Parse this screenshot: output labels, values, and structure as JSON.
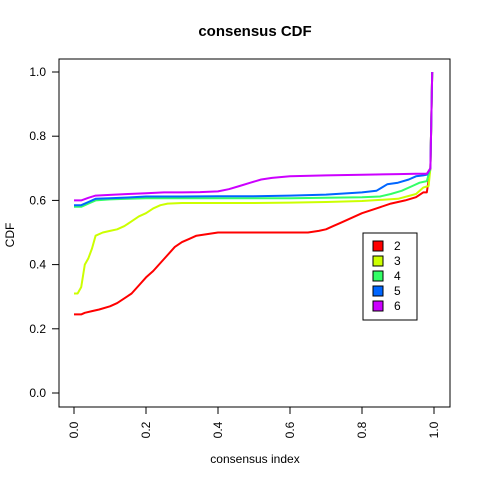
{
  "chart_data": {
    "type": "line",
    "title": "consensus CDF",
    "xlabel": "consensus index",
    "ylabel": "CDF",
    "xlim": [
      0,
      1
    ],
    "ylim": [
      0,
      1
    ],
    "x_ticks": [
      "0.0",
      "0.2",
      "0.4",
      "0.6",
      "0.8",
      "1.0"
    ],
    "y_ticks": [
      "0.0",
      "0.2",
      "0.4",
      "0.6",
      "0.8",
      "1.0"
    ],
    "grid": false,
    "legend_position": "right",
    "series": [
      {
        "name": "2",
        "color": "#ff0000",
        "points": [
          [
            0.0,
            0.245
          ],
          [
            0.02,
            0.245
          ],
          [
            0.03,
            0.25
          ],
          [
            0.05,
            0.255
          ],
          [
            0.07,
            0.26
          ],
          [
            0.1,
            0.27
          ],
          [
            0.12,
            0.28
          ],
          [
            0.14,
            0.295
          ],
          [
            0.16,
            0.31
          ],
          [
            0.18,
            0.335
          ],
          [
            0.2,
            0.36
          ],
          [
            0.22,
            0.38
          ],
          [
            0.24,
            0.405
          ],
          [
            0.26,
            0.43
          ],
          [
            0.28,
            0.455
          ],
          [
            0.3,
            0.47
          ],
          [
            0.32,
            0.48
          ],
          [
            0.34,
            0.49
          ],
          [
            0.37,
            0.495
          ],
          [
            0.4,
            0.5
          ],
          [
            0.45,
            0.5
          ],
          [
            0.5,
            0.5
          ],
          [
            0.55,
            0.5
          ],
          [
            0.6,
            0.5
          ],
          [
            0.65,
            0.5
          ],
          [
            0.68,
            0.505
          ],
          [
            0.7,
            0.51
          ],
          [
            0.72,
            0.52
          ],
          [
            0.74,
            0.53
          ],
          [
            0.76,
            0.54
          ],
          [
            0.8,
            0.56
          ],
          [
            0.84,
            0.575
          ],
          [
            0.88,
            0.59
          ],
          [
            0.92,
            0.6
          ],
          [
            0.95,
            0.61
          ],
          [
            0.97,
            0.625
          ],
          [
            0.98,
            0.625
          ],
          [
            0.99,
            0.7
          ],
          [
            0.995,
            1.0
          ]
        ]
      },
      {
        "name": "3",
        "color": "#ccff00",
        "points": [
          [
            0.0,
            0.31
          ],
          [
            0.01,
            0.31
          ],
          [
            0.02,
            0.33
          ],
          [
            0.03,
            0.4
          ],
          [
            0.04,
            0.42
          ],
          [
            0.05,
            0.45
          ],
          [
            0.06,
            0.49
          ],
          [
            0.08,
            0.5
          ],
          [
            0.1,
            0.505
          ],
          [
            0.12,
            0.51
          ],
          [
            0.14,
            0.52
          ],
          [
            0.16,
            0.535
          ],
          [
            0.18,
            0.55
          ],
          [
            0.2,
            0.56
          ],
          [
            0.22,
            0.575
          ],
          [
            0.24,
            0.585
          ],
          [
            0.26,
            0.59
          ],
          [
            0.3,
            0.592
          ],
          [
            0.4,
            0.592
          ],
          [
            0.5,
            0.592
          ],
          [
            0.6,
            0.593
          ],
          [
            0.7,
            0.595
          ],
          [
            0.8,
            0.598
          ],
          [
            0.9,
            0.605
          ],
          [
            0.95,
            0.62
          ],
          [
            0.97,
            0.64
          ],
          [
            0.985,
            0.645
          ],
          [
            0.99,
            0.7
          ],
          [
            0.995,
            1.0
          ]
        ]
      },
      {
        "name": "4",
        "color": "#33ff66",
        "points": [
          [
            0.0,
            0.58
          ],
          [
            0.02,
            0.58
          ],
          [
            0.04,
            0.59
          ],
          [
            0.06,
            0.6
          ],
          [
            0.1,
            0.603
          ],
          [
            0.15,
            0.605
          ],
          [
            0.2,
            0.607
          ],
          [
            0.3,
            0.607
          ],
          [
            0.4,
            0.607
          ],
          [
            0.5,
            0.607
          ],
          [
            0.6,
            0.607
          ],
          [
            0.7,
            0.608
          ],
          [
            0.8,
            0.61
          ],
          [
            0.85,
            0.612
          ],
          [
            0.88,
            0.62
          ],
          [
            0.91,
            0.63
          ],
          [
            0.94,
            0.645
          ],
          [
            0.96,
            0.655
          ],
          [
            0.98,
            0.66
          ],
          [
            0.99,
            0.7
          ],
          [
            0.995,
            1.0
          ]
        ]
      },
      {
        "name": "5",
        "color": "#0066ff",
        "points": [
          [
            0.0,
            0.585
          ],
          [
            0.02,
            0.585
          ],
          [
            0.04,
            0.595
          ],
          [
            0.06,
            0.605
          ],
          [
            0.1,
            0.607
          ],
          [
            0.15,
            0.609
          ],
          [
            0.2,
            0.612
          ],
          [
            0.3,
            0.612
          ],
          [
            0.4,
            0.613
          ],
          [
            0.5,
            0.613
          ],
          [
            0.6,
            0.615
          ],
          [
            0.7,
            0.618
          ],
          [
            0.8,
            0.625
          ],
          [
            0.84,
            0.63
          ],
          [
            0.87,
            0.65
          ],
          [
            0.9,
            0.655
          ],
          [
            0.93,
            0.665
          ],
          [
            0.95,
            0.675
          ],
          [
            0.97,
            0.678
          ],
          [
            0.98,
            0.68
          ],
          [
            0.99,
            0.7
          ],
          [
            0.995,
            1.0
          ]
        ]
      },
      {
        "name": "6",
        "color": "#cc00ff",
        "points": [
          [
            0.0,
            0.6
          ],
          [
            0.02,
            0.6
          ],
          [
            0.04,
            0.608
          ],
          [
            0.06,
            0.615
          ],
          [
            0.1,
            0.617
          ],
          [
            0.15,
            0.62
          ],
          [
            0.2,
            0.622
          ],
          [
            0.25,
            0.625
          ],
          [
            0.3,
            0.625
          ],
          [
            0.35,
            0.626
          ],
          [
            0.4,
            0.628
          ],
          [
            0.43,
            0.635
          ],
          [
            0.46,
            0.645
          ],
          [
            0.49,
            0.655
          ],
          [
            0.52,
            0.665
          ],
          [
            0.55,
            0.67
          ],
          [
            0.6,
            0.675
          ],
          [
            0.7,
            0.678
          ],
          [
            0.8,
            0.68
          ],
          [
            0.9,
            0.682
          ],
          [
            0.95,
            0.683
          ],
          [
            0.98,
            0.683
          ],
          [
            0.99,
            0.7
          ],
          [
            0.995,
            1.0
          ]
        ]
      }
    ]
  }
}
